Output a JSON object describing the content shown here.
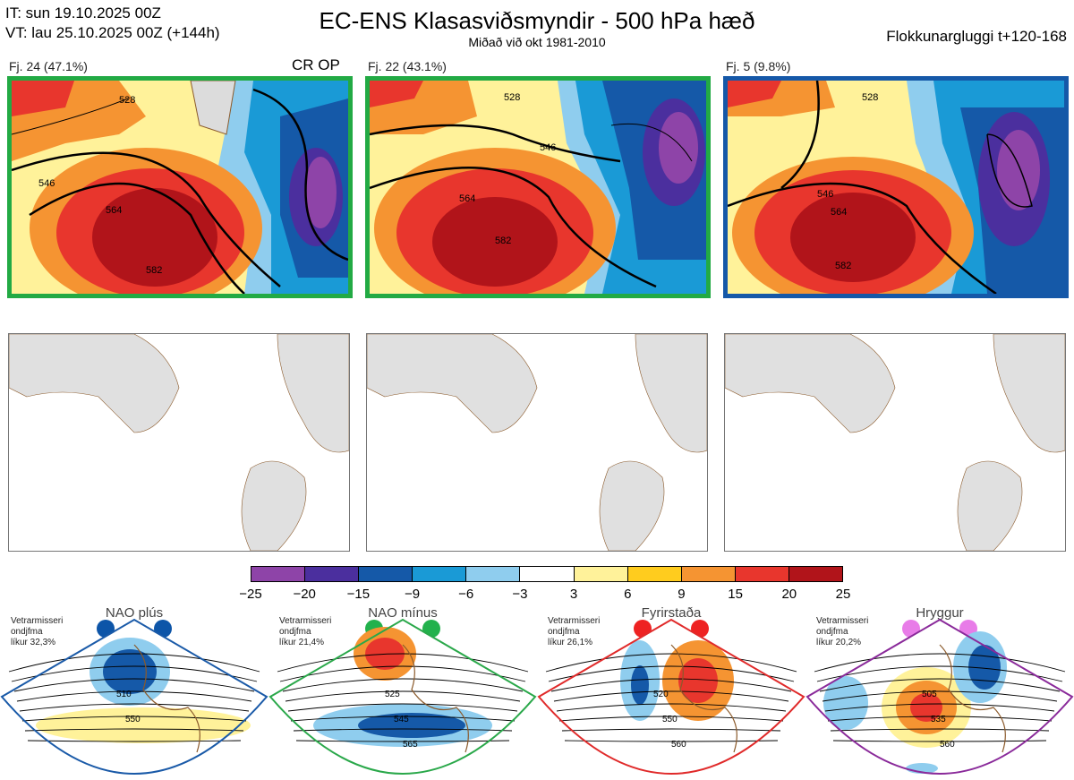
{
  "header": {
    "it_line": "IT: sun 19.10.2025 00Z",
    "vt_line": "VT: lau 25.10.2025 00Z  (+144h)",
    "title": "EC-ENS Klasasviðsmyndir - 500 hPa hæð",
    "subtitle": "Miðað við okt 1981-2010",
    "window": "Flokkunargluggi t+120-168"
  },
  "clusters": [
    {
      "label": "Fj. 24 (47.1%)",
      "tag": "CR OP",
      "border_color": "#22aa44"
    },
    {
      "label": "Fj. 22 (43.1%)",
      "tag": "",
      "border_color": "#22aa44"
    },
    {
      "label": "Fj. 5 (9.8%)",
      "tag": "",
      "border_color": "#1558a8"
    }
  ],
  "contour_labels": [
    "528",
    "546",
    "564",
    "582"
  ],
  "colorbar": {
    "colors": [
      "#8e44a8",
      "#4b2f9e",
      "#1559a8",
      "#1a9ad6",
      "#8fcdee",
      "#ffffff",
      "#fff29a",
      "#ffcc1e",
      "#f59432",
      "#e8362d",
      "#b1141a"
    ],
    "ticks": [
      "−25",
      "−20",
      "−15",
      "−9",
      "−6",
      "−3",
      "3",
      "6",
      "9",
      "15",
      "20",
      "25"
    ]
  },
  "regimes": [
    {
      "name": "NAO plús",
      "info": [
        "Vetrarmisseri",
        "ondjfma",
        "líkur 32,3%"
      ],
      "color": "#1a5aa8",
      "dot_color": "#0d55a8",
      "labels": [
        "510",
        "550"
      ]
    },
    {
      "name": "NAO mínus",
      "info": [
        "Vetrarmisseri",
        "ondjfma",
        "líkur 21,4%"
      ],
      "color": "#2aa84a",
      "dot_color": "#22b14c",
      "labels": [
        "525",
        "545",
        "565"
      ]
    },
    {
      "name": "Fyrirstaða",
      "info": [
        "Vetrarmisseri",
        "ondjfma",
        "líkur 26,1%"
      ],
      "color": "#e02a2a",
      "dot_color": "#ee2222",
      "labels": [
        "520",
        "550",
        "560"
      ]
    },
    {
      "name": "Hryggur",
      "info": [
        "Vetrarmisseri",
        "ondjfma",
        "líkur 20,2%"
      ],
      "color": "#8a2a9a",
      "dot_color": "#e87ce8",
      "labels": [
        "505",
        "535",
        "560"
      ]
    }
  ]
}
